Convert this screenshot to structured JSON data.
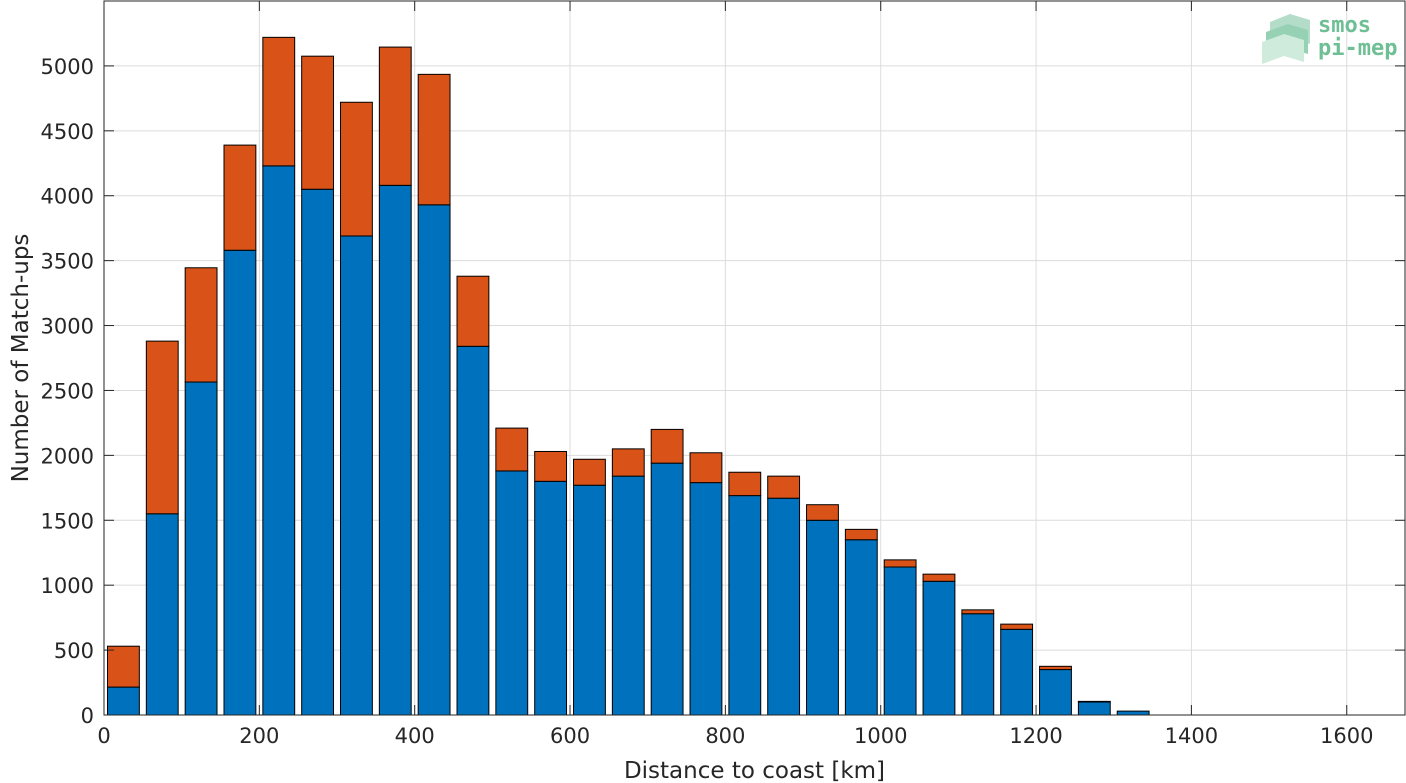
{
  "chart_data": {
    "type": "bar",
    "stacked": true,
    "title": "",
    "xlabel": "Distance to coast [km]",
    "ylabel": "Number of Match-ups",
    "xlim": [
      0,
      1675
    ],
    "ylim": [
      0,
      5500
    ],
    "xticks": [
      0,
      200,
      400,
      600,
      800,
      1000,
      1200,
      1400,
      1600
    ],
    "yticks": [
      0,
      500,
      1000,
      1500,
      2000,
      2500,
      3000,
      3500,
      4000,
      4500,
      5000
    ],
    "grid": true,
    "bin_width": 50,
    "x": [
      25,
      75,
      125,
      175,
      225,
      275,
      325,
      375,
      425,
      475,
      525,
      575,
      625,
      675,
      725,
      775,
      825,
      875,
      925,
      975,
      1025,
      1075,
      1125,
      1175,
      1225,
      1275,
      1325
    ],
    "series": [
      {
        "color": "#0072BD",
        "values": [
          215,
          1550,
          2565,
          3580,
          4230,
          4050,
          3690,
          4080,
          3930,
          2840,
          1880,
          1800,
          1770,
          1840,
          1940,
          1790,
          1690,
          1670,
          1500,
          1350,
          1140,
          1030,
          780,
          660,
          350,
          100,
          30
        ]
      },
      {
        "color": "#D95319",
        "values": [
          315,
          1330,
          880,
          810,
          990,
          1025,
          1030,
          1065,
          1005,
          540,
          330,
          230,
          200,
          210,
          260,
          230,
          180,
          170,
          120,
          80,
          55,
          55,
          30,
          40,
          25,
          5,
          0
        ]
      }
    ]
  },
  "logo": {
    "line1": "smos",
    "line2": "pi-mep"
  }
}
